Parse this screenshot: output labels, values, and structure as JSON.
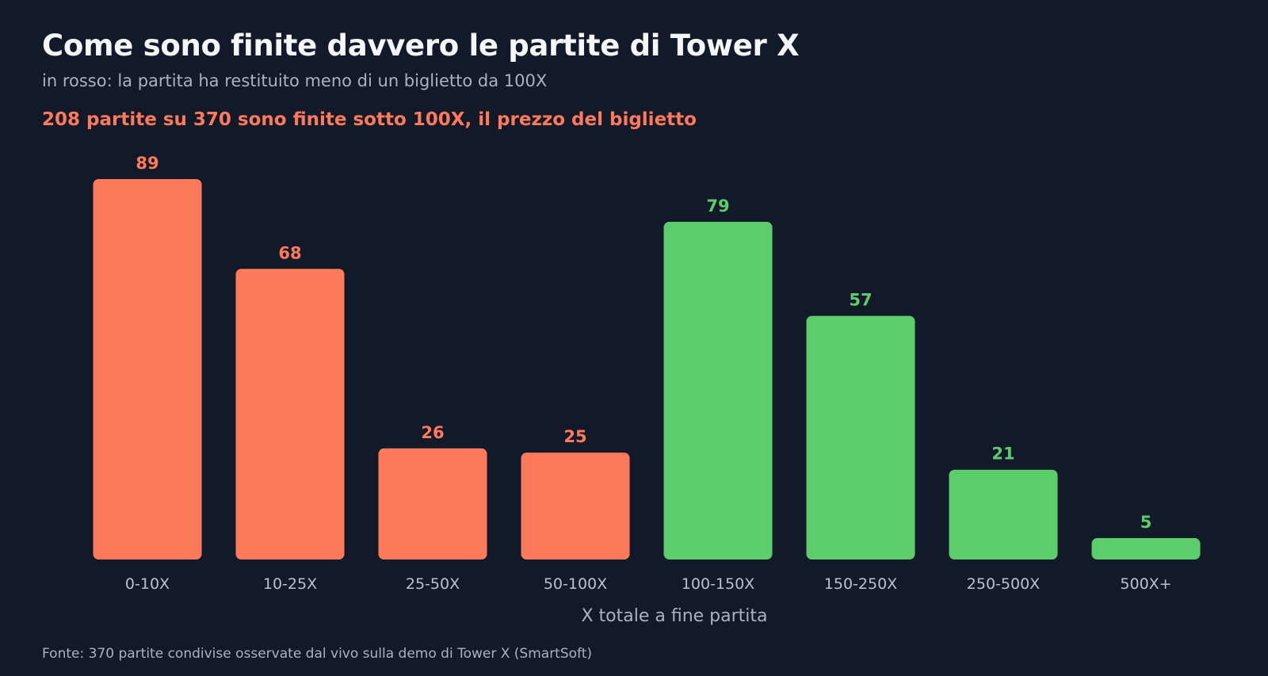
{
  "header": {
    "title": "Come sono finite davvero le partite di Tower X",
    "subtitle": "in rosso: la partita ha restituito meno di un biglietto da 100X",
    "highlight": "208 partite su 370 sono finite sotto 100X, il prezzo del biglietto"
  },
  "footer": {
    "source": "Fonte: 370 partite condivise osservate dal vivo sulla demo di Tower X (SmartSoft)"
  },
  "colors": {
    "background": "#121a2a",
    "below_threshold": "#ff7a5a",
    "above_threshold": "#5ccd6c"
  },
  "chart_data": {
    "type": "bar",
    "categories": [
      "0-10X",
      "10-25X",
      "25-50X",
      "50-100X",
      "100-150X",
      "150-250X",
      "250-500X",
      "500X+"
    ],
    "values": [
      89,
      68,
      26,
      25,
      79,
      57,
      21,
      5
    ],
    "groups": [
      "below",
      "below",
      "below",
      "below",
      "above",
      "above",
      "above",
      "above"
    ],
    "title": "Come sono finite davvero le partite di Tower X",
    "xlabel": "X totale a fine partita",
    "ylabel": "",
    "ylim": [
      0,
      89
    ],
    "grid": false,
    "legend": "none"
  }
}
